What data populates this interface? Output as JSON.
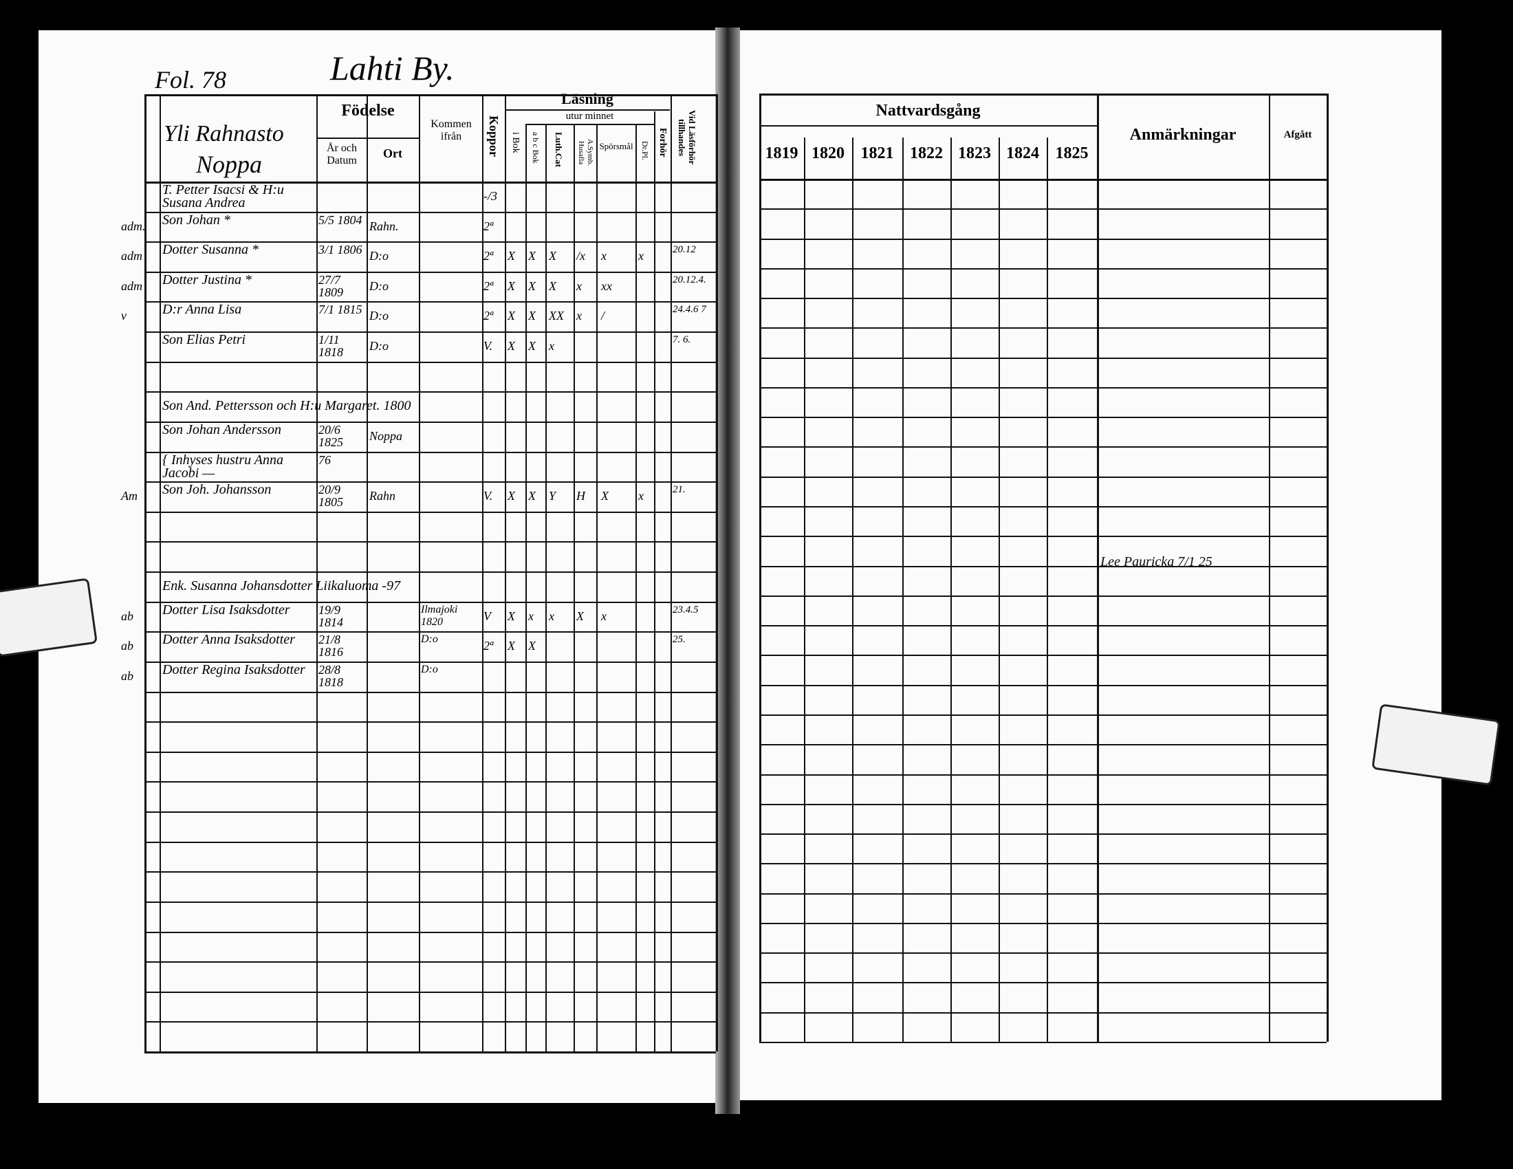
{
  "left_page": {
    "folio": "Fol. 78",
    "village": "Lahti By.",
    "farm_name_line1": "Yli Rahnasto",
    "farm_name_line2": "Noppa",
    "headers": {
      "fodelse": "Födelse",
      "ar_och_datum": "År och Datum",
      "ort": "Ort",
      "kommen_ifran": "Kommen ifrån",
      "koppor": "Koppor",
      "lasning": "Läsning",
      "utur_minnet": "utur minnet",
      "i_bok": "i Bok",
      "abc_bok": "a b c Bok",
      "luth_cat": "Luth.Cat",
      "a_symb": "A.Symb. Husafla",
      "sporsmal": "Spörsmål",
      "dr_pl": "Dr.Pl.",
      "forhor": "Forhör",
      "vid_lasforhor": "Vid Läsförhör tillhandes"
    },
    "rows": [
      {
        "margin": "",
        "name": "T. Petter Isacsi & H:u Susana Andrea",
        "date": "",
        "place": "",
        "from": "",
        "koppor": "-/3",
        "marks": [
          "",
          "",
          "",
          "",
          "",
          "",
          ""
        ],
        "vid": ""
      },
      {
        "margin": "adm.",
        "name": "Son Johan *",
        "date": "5/5 1804",
        "place": "Rahn.",
        "from": "",
        "koppor": "2ª",
        "marks": [
          "",
          "",
          "",
          "",
          "",
          "",
          ""
        ],
        "vid": ""
      },
      {
        "margin": "adm",
        "name": "Dotter Susanna *",
        "date": "3/1 1806",
        "place": "D:o",
        "from": "",
        "koppor": "2ª",
        "marks": [
          "X",
          "X",
          "X",
          "/x",
          "x",
          "x",
          ""
        ],
        "vid": "20.12"
      },
      {
        "margin": "adm",
        "name": "Dotter Justina *",
        "date": "27/7 1809",
        "place": "D:o",
        "from": "",
        "koppor": "2ª",
        "marks": [
          "X",
          "X",
          "X",
          "x",
          "xx",
          "",
          ""
        ],
        "vid": "20.12.4."
      },
      {
        "margin": "v",
        "name": "D:r Anna Lisa",
        "date": "7/1 1815",
        "place": "D:o",
        "from": "",
        "koppor": "2ª",
        "marks": [
          "X",
          "X",
          "XX",
          "x",
          "/",
          "",
          ""
        ],
        "vid": "24.4.6 7"
      },
      {
        "margin": "",
        "name": "Son Elias Petri",
        "date": "1/11 1818",
        "place": "D:o",
        "from": "",
        "koppor": "V.",
        "marks": [
          "X",
          "X",
          "x",
          "",
          "",
          "",
          ""
        ],
        "vid": "7. 6."
      },
      {
        "margin": "",
        "name": "",
        "date": "",
        "place": "",
        "from": "",
        "koppor": "",
        "marks": [
          "",
          "",
          "",
          "",
          "",
          "",
          ""
        ],
        "vid": ""
      },
      {
        "margin": "",
        "name": "Son And. Pettersson och H:u Margaret. 1800",
        "date": "",
        "place": "",
        "from": "",
        "koppor": "",
        "marks": [
          "",
          "",
          "",
          "",
          "",
          "",
          ""
        ],
        "vid": ""
      },
      {
        "margin": "",
        "name": "Son Johan Andersson",
        "date": "20/6 1825",
        "place": "Noppa",
        "from": "",
        "koppor": "",
        "marks": [
          "",
          "",
          "",
          "",
          "",
          "",
          ""
        ],
        "vid": ""
      },
      {
        "margin": "",
        "name": "{ Inhyses hustru Anna Jacobi —",
        "date": "76",
        "place": "",
        "from": "",
        "koppor": "",
        "marks": [
          "",
          "",
          "",
          "",
          "",
          "",
          ""
        ],
        "vid": ""
      },
      {
        "margin": "Am",
        "name": "Son Joh. Johansson",
        "date": "20/9 1805",
        "place": "Rahn",
        "from": "",
        "koppor": "V.",
        "marks": [
          "X",
          "X",
          "Y",
          "H",
          "X",
          "x",
          ""
        ],
        "vid": "21."
      },
      {
        "margin": "",
        "name": "",
        "date": "",
        "place": "",
        "from": "",
        "koppor": "",
        "marks": [
          "",
          "",
          "",
          "",
          "",
          "",
          ""
        ],
        "vid": ""
      },
      {
        "margin": "",
        "name": "",
        "date": "",
        "place": "",
        "from": "",
        "koppor": "",
        "marks": [
          "",
          "",
          "",
          "",
          "",
          "",
          ""
        ],
        "vid": ""
      },
      {
        "margin": "",
        "name": "Enk. Susanna Johansdotter Liikaluoma -97",
        "date": "",
        "place": "",
        "from": "",
        "koppor": "",
        "marks": [
          "",
          "",
          "",
          "",
          "",
          "",
          ""
        ],
        "vid": ""
      },
      {
        "margin": "ab",
        "name": "Dotter Lisa Isaksdotter",
        "date": "19/9 1814",
        "place": "",
        "from": "Ilmajoki 1820",
        "koppor": "V",
        "marks": [
          "X",
          "x",
          "x",
          "X",
          "x",
          "",
          ""
        ],
        "vid": "23.4.5"
      },
      {
        "margin": "ab",
        "name": "Dotter Anna Isaksdotter",
        "date": "21/8 1816",
        "place": "",
        "from": "D:o",
        "koppor": "2ª",
        "marks": [
          "X",
          "X",
          "",
          "",
          "",
          "",
          ""
        ],
        "vid": "25."
      },
      {
        "margin": "ab",
        "name": "Dotter Regina Isaksdotter",
        "date": "28/8 1818",
        "place": "",
        "from": "D:o",
        "koppor": "",
        "marks": [
          "",
          "",
          "",
          "",
          "",
          "",
          ""
        ],
        "vid": ""
      }
    ]
  },
  "right_page": {
    "headers": {
      "nattvardsgang": "Nattvardsgång",
      "years": [
        "1819",
        "1820",
        "1821",
        "1822",
        "1823",
        "1824",
        "1825"
      ],
      "anmarkningar": "Anmärkningar",
      "afgatt": "Afgått"
    },
    "annotation": "Lee Pauricka 7/1 25"
  }
}
